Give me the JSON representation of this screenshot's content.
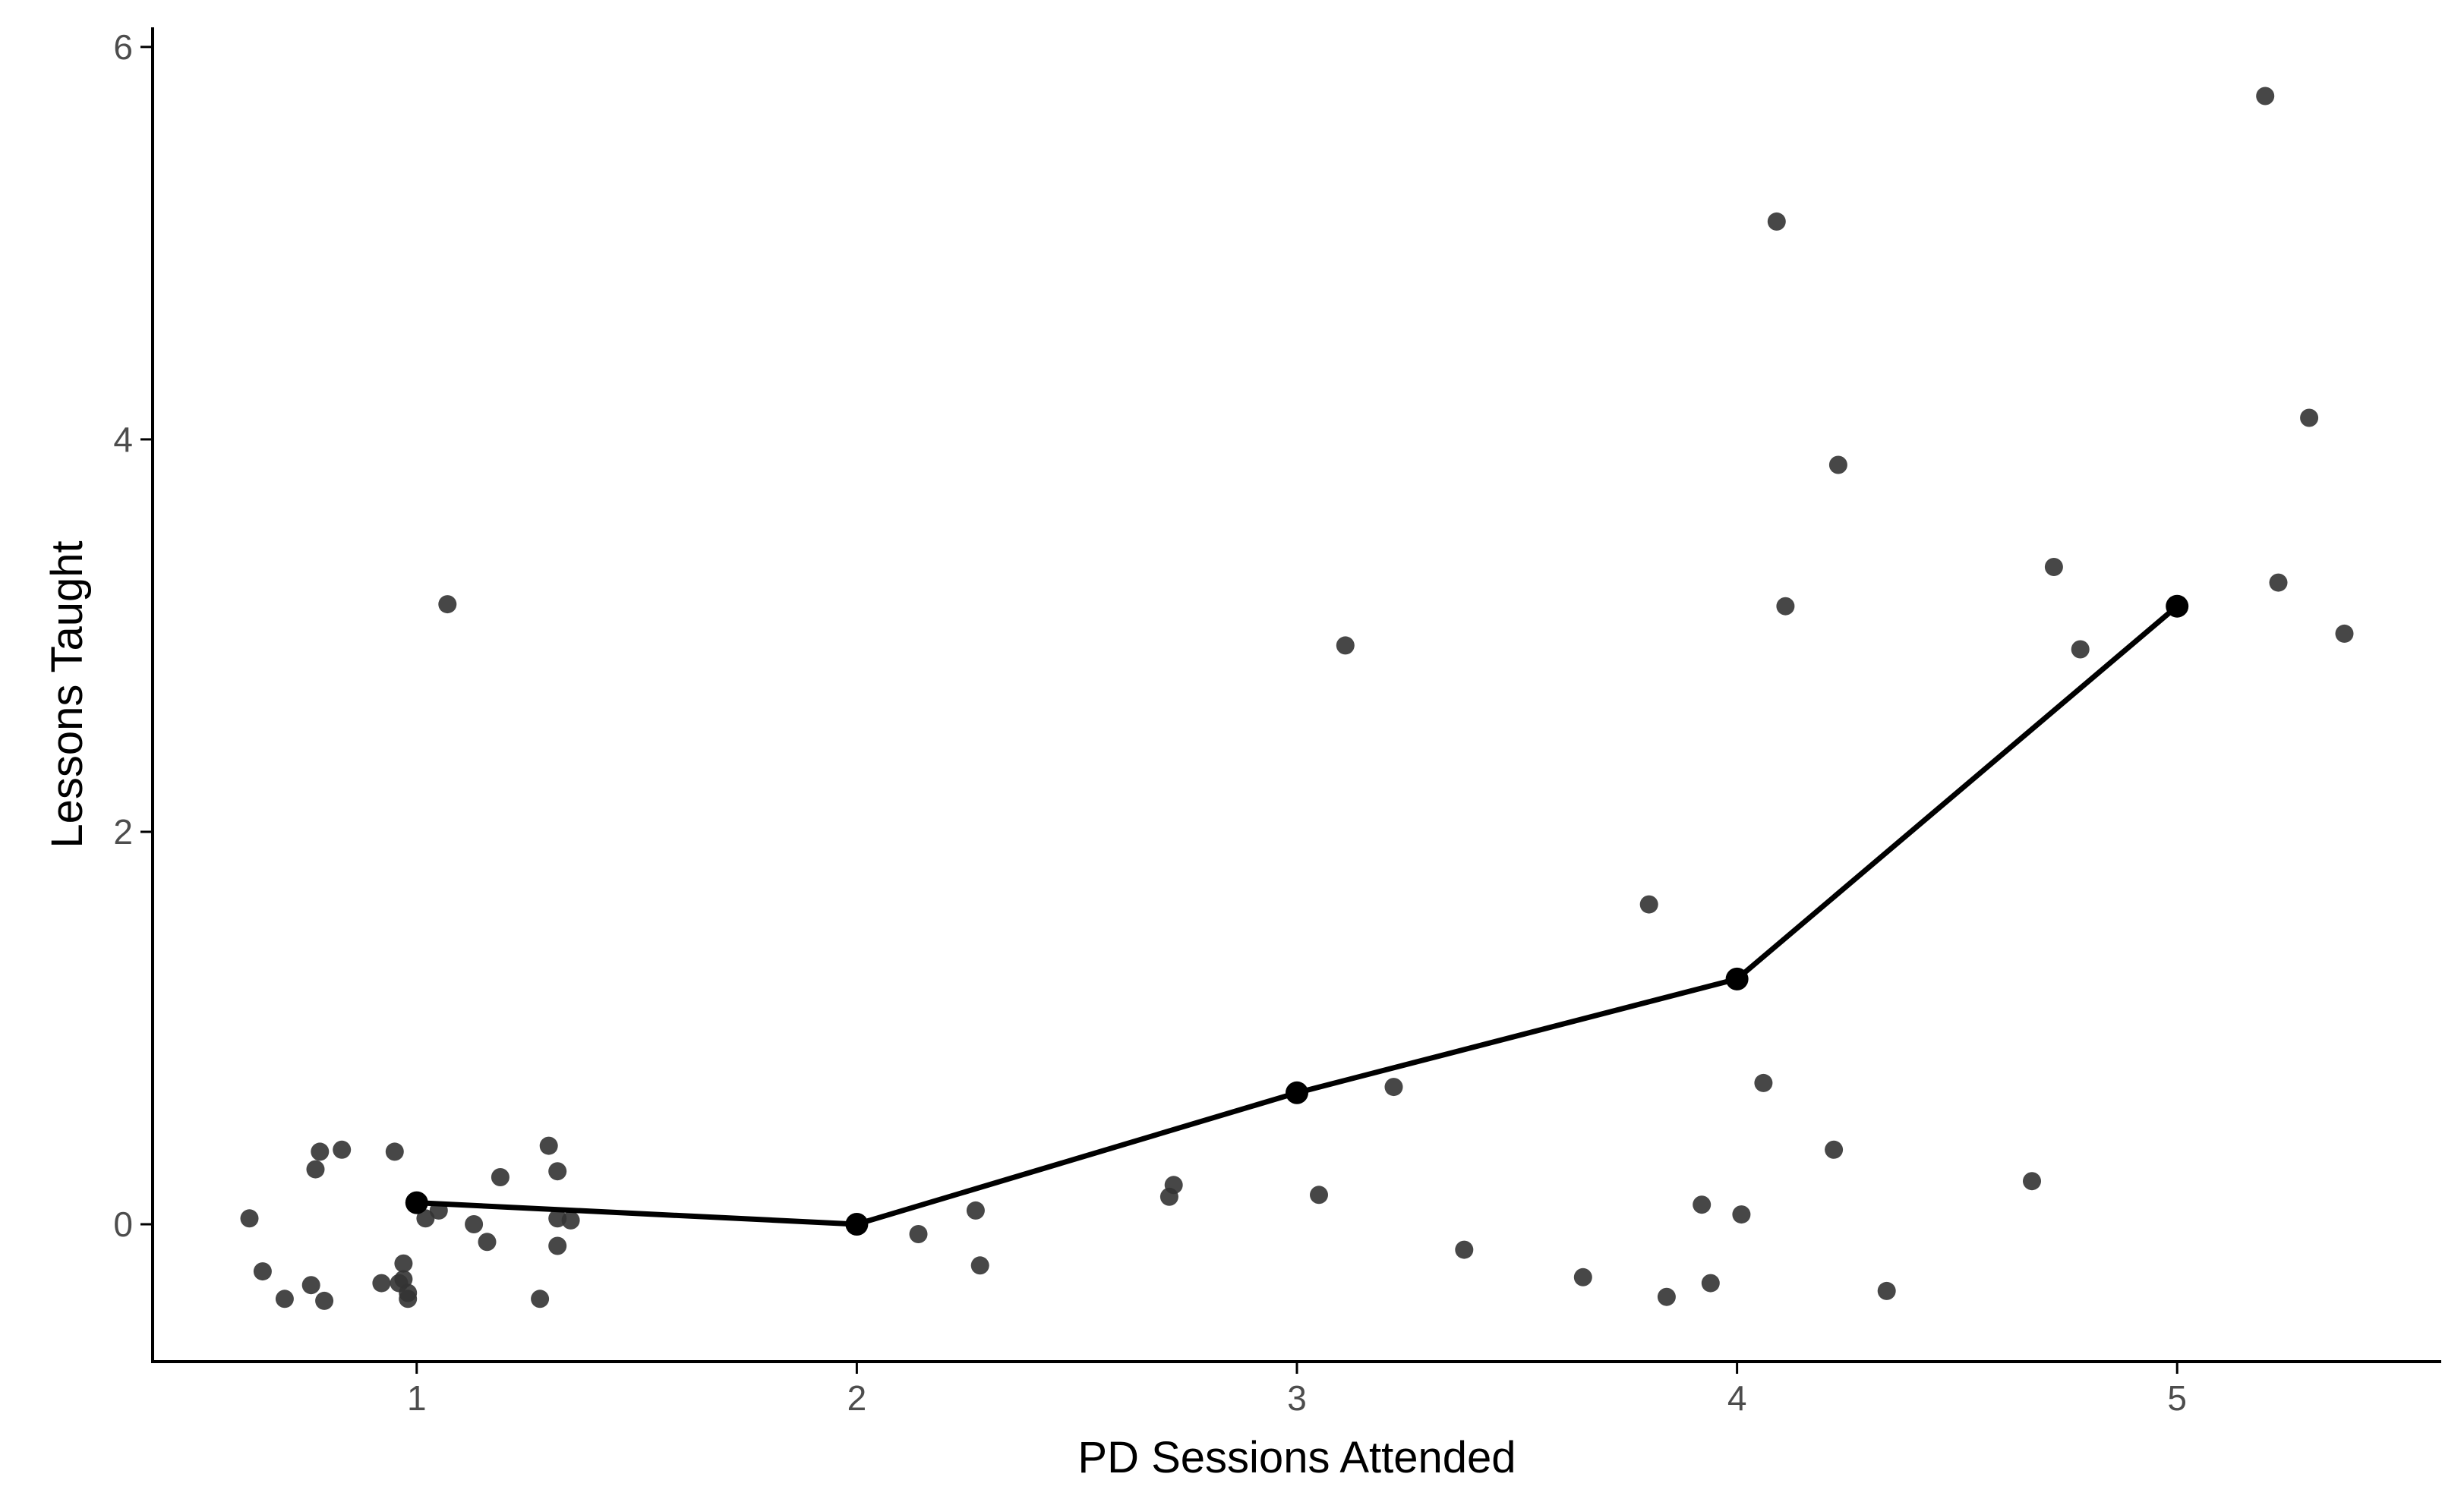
{
  "chart_data": {
    "type": "scatter",
    "xlabel": "PD Sessions Attended",
    "ylabel": "Lessons Taught",
    "xlim": [
      0.4,
      5.6
    ],
    "ylim": [
      -0.7,
      6.1
    ],
    "xticks": [
      1,
      2,
      3,
      4,
      5
    ],
    "yticks": [
      0,
      2,
      4,
      6
    ],
    "grid": false,
    "legend": "none",
    "colors": {
      "points": "#333333",
      "line": "#000000",
      "axes": "#000000",
      "tick_labels": "#4d4d4d"
    },
    "series": [
      {
        "kind": "jittered-points",
        "points": [
          [
            0.62,
            0.03
          ],
          [
            0.65,
            -0.24
          ],
          [
            0.7,
            -0.38
          ],
          [
            0.76,
            -0.31
          ],
          [
            0.77,
            0.28
          ],
          [
            0.78,
            0.37
          ],
          [
            0.79,
            -0.39
          ],
          [
            0.83,
            0.38
          ],
          [
            0.92,
            -0.3
          ],
          [
            0.95,
            0.37
          ],
          [
            0.96,
            -0.3
          ],
          [
            0.97,
            -0.2
          ],
          [
            0.97,
            -0.28
          ],
          [
            0.98,
            -0.35
          ],
          [
            0.98,
            -0.38
          ],
          [
            1.0,
            0.11
          ],
          [
            1.02,
            0.03
          ],
          [
            1.05,
            0.07
          ],
          [
            1.07,
            3.16
          ],
          [
            1.13,
            0.0
          ],
          [
            1.16,
            -0.09
          ],
          [
            1.19,
            0.24
          ],
          [
            1.28,
            -0.38
          ],
          [
            1.3,
            0.4
          ],
          [
            1.32,
            0.27
          ],
          [
            1.32,
            0.03
          ],
          [
            1.32,
            -0.11
          ],
          [
            1.35,
            0.02
          ],
          [
            2.14,
            -0.05
          ],
          [
            2.27,
            0.07
          ],
          [
            2.28,
            -0.21
          ],
          [
            2.71,
            0.14
          ],
          [
            2.72,
            0.2
          ],
          [
            3.05,
            0.15
          ],
          [
            3.11,
            2.95
          ],
          [
            3.22,
            0.7
          ],
          [
            3.38,
            -0.13
          ],
          [
            3.65,
            -0.27
          ],
          [
            3.8,
            1.63
          ],
          [
            3.84,
            -0.37
          ],
          [
            3.92,
            0.1
          ],
          [
            3.94,
            -0.3
          ],
          [
            4.01,
            0.05
          ],
          [
            4.06,
            0.72
          ],
          [
            4.09,
            5.11
          ],
          [
            4.11,
            3.15
          ],
          [
            4.22,
            0.38
          ],
          [
            4.23,
            3.87
          ],
          [
            4.34,
            -0.34
          ],
          [
            4.67,
            0.22
          ],
          [
            4.72,
            3.35
          ],
          [
            4.78,
            2.93
          ],
          [
            5.2,
            5.75
          ],
          [
            5.23,
            3.27
          ],
          [
            5.3,
            4.11
          ],
          [
            5.38,
            3.01
          ]
        ]
      },
      {
        "kind": "mean-line",
        "x": [
          1,
          2,
          3,
          4,
          5
        ],
        "y": [
          0.11,
          0.0,
          0.67,
          1.25,
          3.15
        ]
      }
    ]
  }
}
